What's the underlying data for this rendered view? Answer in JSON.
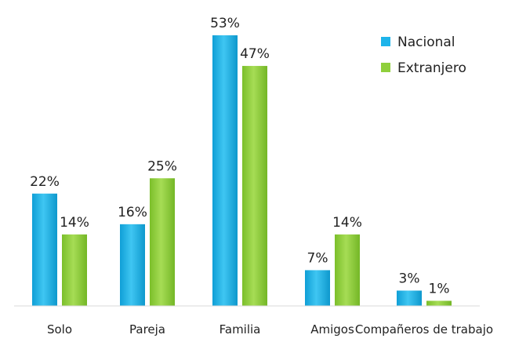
{
  "chart_data": {
    "type": "bar",
    "categories": [
      "Solo",
      "Pareja",
      "Familia",
      "Amigos",
      "Compañeros de trabajo"
    ],
    "series": [
      {
        "name": "Nacional",
        "values": [
          22,
          16,
          53,
          7,
          3
        ],
        "labels": [
          "22%",
          "16%",
          "53%",
          "7%",
          "3%"
        ],
        "color": "#1eb4ea"
      },
      {
        "name": "Extranjero",
        "values": [
          14,
          25,
          47,
          14,
          1
        ],
        "labels": [
          "14%",
          "25%",
          "47%",
          "14%",
          "1%"
        ],
        "color": "#8fcf3c"
      }
    ],
    "ylim": [
      0,
      55
    ],
    "grid": false,
    "legend_position": "top-right"
  }
}
